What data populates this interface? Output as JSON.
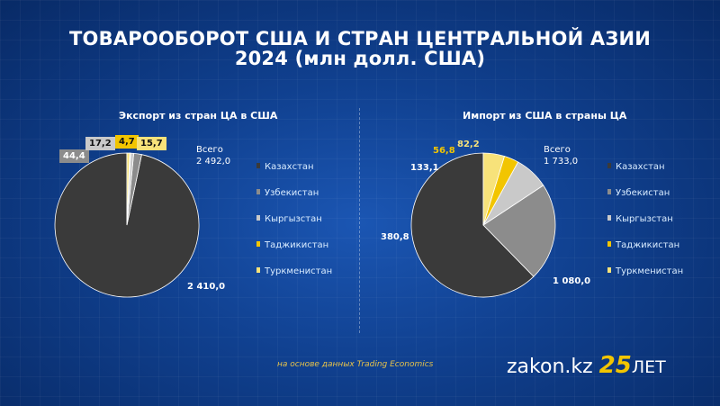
{
  "header": {
    "title_line1": "ТОВАРООБОРОТ США И СТРАН ЦЕНТРАЛЬНОЙ АЗИИ",
    "title_line2": "2024 (млн долл. США)"
  },
  "colors": {
    "kazakhstan": "#3a3a3a",
    "uzbekistan": "#8c8c8c",
    "kyrgyzstan": "#c9c9c9",
    "tajikistan": "#f2c500",
    "turkmenistan": "#f7e27a"
  },
  "chart_data": [
    {
      "type": "pie",
      "title": "Экспорт из стран ЦА в США",
      "total_label": "Всего",
      "total_value": "2 492,0",
      "categories": [
        "Казахстан",
        "Узбекистан",
        "Кыргызстан",
        "Таджикистан",
        "Туркменистан"
      ],
      "values": [
        2410.0,
        44.4,
        17.2,
        4.7,
        15.7
      ],
      "value_labels": [
        "2 410,0",
        "44,4",
        "17,2",
        "4,7",
        "15,7"
      ],
      "legend_placement": "right"
    },
    {
      "type": "pie",
      "title": "Импорт из США в страны ЦА",
      "total_label": "Всего",
      "total_value": "1 733,0",
      "categories": [
        "Казахстан",
        "Узбекистан",
        "Кыргызстан",
        "Таджикистан",
        "Туркменистан"
      ],
      "values": [
        1080.0,
        380.8,
        133.1,
        56.8,
        82.2
      ],
      "value_labels": [
        "1 080,0",
        "380,8",
        "133,1",
        "56,8",
        "82,2"
      ],
      "legend_placement": "right"
    }
  ],
  "footer": {
    "source": "на основе данных Trading Economics",
    "brand": "zakon.kz",
    "brand_number": "25",
    "brand_suffix": "ЛЕТ"
  }
}
